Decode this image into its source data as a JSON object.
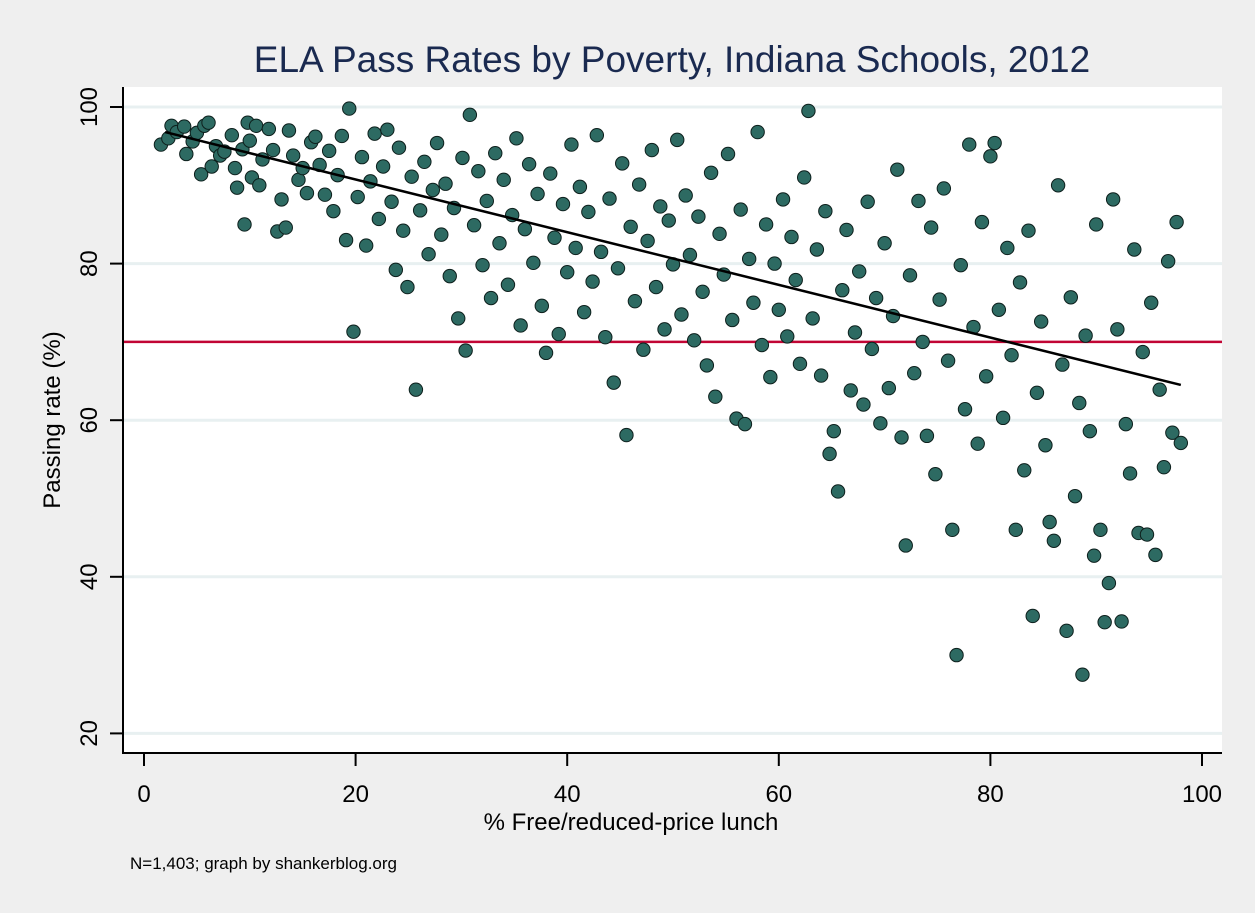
{
  "chart_data": {
    "type": "scatter",
    "title": "ELA Pass Rates by Poverty, Indiana Schools, 2012",
    "xlabel": "% Free/reduced-price lunch",
    "ylabel": "Passing rate (%)",
    "note": "N=1,403; graph by shankerblog.org",
    "xlim": [
      -2,
      102
    ],
    "ylim": [
      18,
      102.5
    ],
    "xticks": [
      0,
      20,
      40,
      60,
      80,
      100
    ],
    "yticks": [
      20,
      40,
      60,
      80,
      100
    ],
    "grid": true,
    "colors": {
      "marker_fill": "#2d6a62",
      "marker_edge": "#0d1f1c",
      "reference_line": "#c10534",
      "fit_line": "#000000",
      "title": "#1a2a50",
      "grid": "#e8f0f1"
    },
    "reference_line": {
      "y": 70,
      "label": ""
    },
    "fit_line": {
      "x": [
        2,
        98
      ],
      "y": [
        96.8,
        64.5
      ]
    },
    "n": 1403,
    "points": [
      [
        1.6,
        95.2
      ],
      [
        2.3,
        96.0
      ],
      [
        2.6,
        97.6
      ],
      [
        3.1,
        96.8
      ],
      [
        3.8,
        97.5
      ],
      [
        4.0,
        94.0
      ],
      [
        4.6,
        95.6
      ],
      [
        5.0,
        96.7
      ],
      [
        5.4,
        91.4
      ],
      [
        5.7,
        97.6
      ],
      [
        6.1,
        98.0
      ],
      [
        6.4,
        92.4
      ],
      [
        6.8,
        95.0
      ],
      [
        7.2,
        93.8
      ],
      [
        7.6,
        94.3
      ],
      [
        8.3,
        96.4
      ],
      [
        8.6,
        92.2
      ],
      [
        8.8,
        89.7
      ],
      [
        9.3,
        94.6
      ],
      [
        9.5,
        85.0
      ],
      [
        9.8,
        98.0
      ],
      [
        10.0,
        95.7
      ],
      [
        10.2,
        91.0
      ],
      [
        10.6,
        97.6
      ],
      [
        10.9,
        90.0
      ],
      [
        11.2,
        93.3
      ],
      [
        11.8,
        97.2
      ],
      [
        12.2,
        94.5
      ],
      [
        12.6,
        84.1
      ],
      [
        13.0,
        88.2
      ],
      [
        13.4,
        84.6
      ],
      [
        13.7,
        97.0
      ],
      [
        14.1,
        93.8
      ],
      [
        14.6,
        90.7
      ],
      [
        15.0,
        92.2
      ],
      [
        15.4,
        89.0
      ],
      [
        15.8,
        95.5
      ],
      [
        16.2,
        96.2
      ],
      [
        16.6,
        92.6
      ],
      [
        17.1,
        88.8
      ],
      [
        17.5,
        94.4
      ],
      [
        17.9,
        86.7
      ],
      [
        18.3,
        91.3
      ],
      [
        18.7,
        96.3
      ],
      [
        19.1,
        83.0
      ],
      [
        19.4,
        99.8
      ],
      [
        19.8,
        71.3
      ],
      [
        20.2,
        88.5
      ],
      [
        20.6,
        93.6
      ],
      [
        21.0,
        82.3
      ],
      [
        21.4,
        90.5
      ],
      [
        21.8,
        96.6
      ],
      [
        22.2,
        85.7
      ],
      [
        22.6,
        92.4
      ],
      [
        23.0,
        97.1
      ],
      [
        23.4,
        87.9
      ],
      [
        23.8,
        79.2
      ],
      [
        24.1,
        94.8
      ],
      [
        24.5,
        84.2
      ],
      [
        24.9,
        77.0
      ],
      [
        25.3,
        91.1
      ],
      [
        25.7,
        63.9
      ],
      [
        26.1,
        86.8
      ],
      [
        26.5,
        93.0
      ],
      [
        26.9,
        81.2
      ],
      [
        27.3,
        89.4
      ],
      [
        27.7,
        95.4
      ],
      [
        28.1,
        83.7
      ],
      [
        28.5,
        90.2
      ],
      [
        28.9,
        78.4
      ],
      [
        29.3,
        87.1
      ],
      [
        29.7,
        73.0
      ],
      [
        30.1,
        93.5
      ],
      [
        30.4,
        68.9
      ],
      [
        30.8,
        99.0
      ],
      [
        31.2,
        84.9
      ],
      [
        31.6,
        91.8
      ],
      [
        32.0,
        79.8
      ],
      [
        32.4,
        88.0
      ],
      [
        32.8,
        75.6
      ],
      [
        33.2,
        94.1
      ],
      [
        33.6,
        82.6
      ],
      [
        34.0,
        90.7
      ],
      [
        34.4,
        77.3
      ],
      [
        34.8,
        86.2
      ],
      [
        35.2,
        96.0
      ],
      [
        35.6,
        72.1
      ],
      [
        36.0,
        84.4
      ],
      [
        36.4,
        92.7
      ],
      [
        36.8,
        80.1
      ],
      [
        37.2,
        88.9
      ],
      [
        37.6,
        74.6
      ],
      [
        38.0,
        68.6
      ],
      [
        38.4,
        91.5
      ],
      [
        38.8,
        83.3
      ],
      [
        39.2,
        71.0
      ],
      [
        39.6,
        87.6
      ],
      [
        40.0,
        78.9
      ],
      [
        40.4,
        95.2
      ],
      [
        40.8,
        82.0
      ],
      [
        41.2,
        89.8
      ],
      [
        41.6,
        73.8
      ],
      [
        42.0,
        86.6
      ],
      [
        42.4,
        77.7
      ],
      [
        42.8,
        96.4
      ],
      [
        43.2,
        81.5
      ],
      [
        43.6,
        70.6
      ],
      [
        44.0,
        88.3
      ],
      [
        44.4,
        64.8
      ],
      [
        44.8,
        79.4
      ],
      [
        45.2,
        92.8
      ],
      [
        45.6,
        58.1
      ],
      [
        46.0,
        84.7
      ],
      [
        46.4,
        75.2
      ],
      [
        46.8,
        90.1
      ],
      [
        47.2,
        69.0
      ],
      [
        47.6,
        82.9
      ],
      [
        48.0,
        94.5
      ],
      [
        48.4,
        77.0
      ],
      [
        48.8,
        87.3
      ],
      [
        49.2,
        71.6
      ],
      [
        49.6,
        85.5
      ],
      [
        50.0,
        79.9
      ],
      [
        50.4,
        95.8
      ],
      [
        50.8,
        73.5
      ],
      [
        51.2,
        88.7
      ],
      [
        51.6,
        81.1
      ],
      [
        52.0,
        70.2
      ],
      [
        52.4,
        86.0
      ],
      [
        52.8,
        76.4
      ],
      [
        53.2,
        67.0
      ],
      [
        53.6,
        91.6
      ],
      [
        54.0,
        63.0
      ],
      [
        54.4,
        83.8
      ],
      [
        54.8,
        78.6
      ],
      [
        55.2,
        94.0
      ],
      [
        55.6,
        72.8
      ],
      [
        56.0,
        60.2
      ],
      [
        56.4,
        86.9
      ],
      [
        56.8,
        59.5
      ],
      [
        57.2,
        80.6
      ],
      [
        57.6,
        75.0
      ],
      [
        58.0,
        96.8
      ],
      [
        58.4,
        69.6
      ],
      [
        58.8,
        85.0
      ],
      [
        59.2,
        65.5
      ],
      [
        59.6,
        80.0
      ],
      [
        60.0,
        74.1
      ],
      [
        60.4,
        88.2
      ],
      [
        60.8,
        70.7
      ],
      [
        61.2,
        83.4
      ],
      [
        61.6,
        77.9
      ],
      [
        62.0,
        67.2
      ],
      [
        62.4,
        91.0
      ],
      [
        62.8,
        99.5
      ],
      [
        63.2,
        73.0
      ],
      [
        63.6,
        81.8
      ],
      [
        64.0,
        65.7
      ],
      [
        64.4,
        86.7
      ],
      [
        64.8,
        55.7
      ],
      [
        65.2,
        58.6
      ],
      [
        65.6,
        50.9
      ],
      [
        66.0,
        76.6
      ],
      [
        66.4,
        84.3
      ],
      [
        66.8,
        63.8
      ],
      [
        67.2,
        71.2
      ],
      [
        67.6,
        79.0
      ],
      [
        68.0,
        62.0
      ],
      [
        68.4,
        87.9
      ],
      [
        68.8,
        69.1
      ],
      [
        69.2,
        75.6
      ],
      [
        69.6,
        59.6
      ],
      [
        70.0,
        82.6
      ],
      [
        70.4,
        64.1
      ],
      [
        70.8,
        73.3
      ],
      [
        71.2,
        92.0
      ],
      [
        71.6,
        57.8
      ],
      [
        72.0,
        44.0
      ],
      [
        72.4,
        78.5
      ],
      [
        72.8,
        66.0
      ],
      [
        73.2,
        88.0
      ],
      [
        73.6,
        70.0
      ],
      [
        74.0,
        58.0
      ],
      [
        74.4,
        84.6
      ],
      [
        74.8,
        53.1
      ],
      [
        75.2,
        75.4
      ],
      [
        75.6,
        89.6
      ],
      [
        76.0,
        67.6
      ],
      [
        76.4,
        46.0
      ],
      [
        76.8,
        30.0
      ],
      [
        77.2,
        79.8
      ],
      [
        77.6,
        61.4
      ],
      [
        78.0,
        95.2
      ],
      [
        78.4,
        71.9
      ],
      [
        78.8,
        57.0
      ],
      [
        79.2,
        85.3
      ],
      [
        79.6,
        65.6
      ],
      [
        80.0,
        93.7
      ],
      [
        80.4,
        95.4
      ],
      [
        80.8,
        74.1
      ],
      [
        81.2,
        60.3
      ],
      [
        81.6,
        82.0
      ],
      [
        82.0,
        68.3
      ],
      [
        82.4,
        46.0
      ],
      [
        82.8,
        77.6
      ],
      [
        83.2,
        53.6
      ],
      [
        83.6,
        84.2
      ],
      [
        84.0,
        35.0
      ],
      [
        84.4,
        63.5
      ],
      [
        84.8,
        72.6
      ],
      [
        85.2,
        56.8
      ],
      [
        85.6,
        47.0
      ],
      [
        86.0,
        44.6
      ],
      [
        86.4,
        90.0
      ],
      [
        86.8,
        67.1
      ],
      [
        87.2,
        33.1
      ],
      [
        87.6,
        75.7
      ],
      [
        88.0,
        50.3
      ],
      [
        88.4,
        62.2
      ],
      [
        88.7,
        27.5
      ],
      [
        89.0,
        70.8
      ],
      [
        89.4,
        58.6
      ],
      [
        89.8,
        42.7
      ],
      [
        90.0,
        85.0
      ],
      [
        90.4,
        46.0
      ],
      [
        90.8,
        34.2
      ],
      [
        91.2,
        39.2
      ],
      [
        91.6,
        88.2
      ],
      [
        92.0,
        71.6
      ],
      [
        92.4,
        34.3
      ],
      [
        92.8,
        59.5
      ],
      [
        93.2,
        53.2
      ],
      [
        93.6,
        81.8
      ],
      [
        94.0,
        45.6
      ],
      [
        94.4,
        68.7
      ],
      [
        94.8,
        45.4
      ],
      [
        95.2,
        75.0
      ],
      [
        95.6,
        42.8
      ],
      [
        96.0,
        63.9
      ],
      [
        96.4,
        54.0
      ],
      [
        96.8,
        80.3
      ],
      [
        97.2,
        58.4
      ],
      [
        97.6,
        85.3
      ],
      [
        98.0,
        57.1
      ]
    ]
  }
}
